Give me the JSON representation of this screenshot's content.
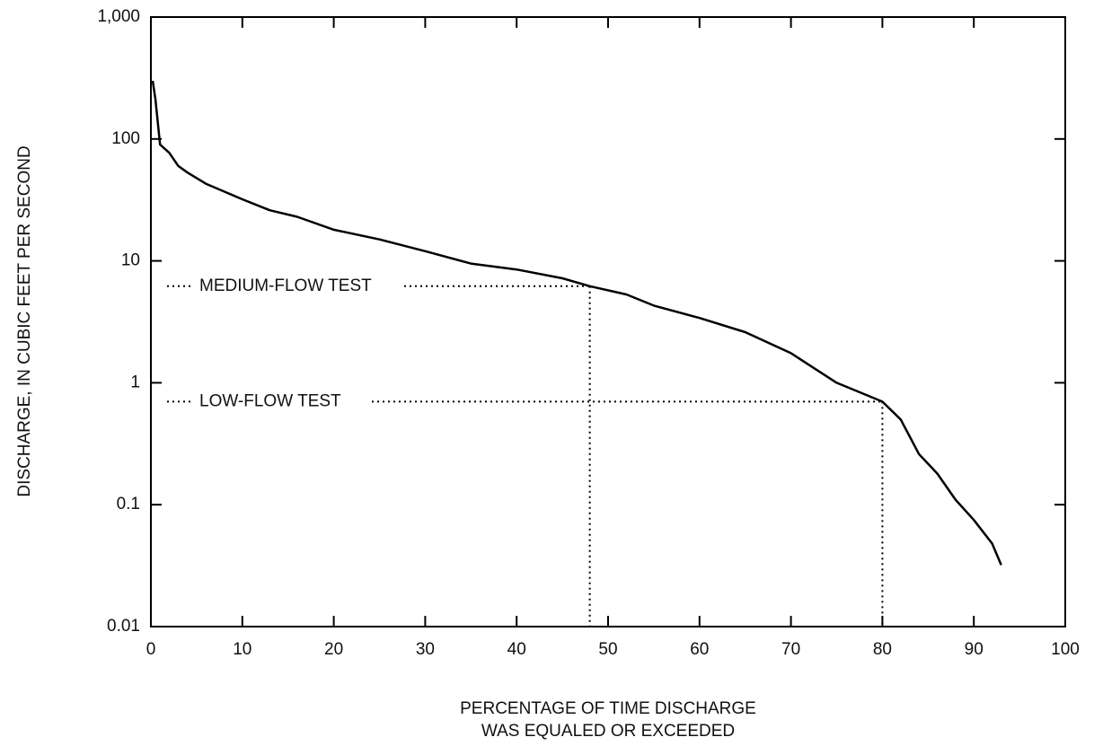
{
  "chart_data": {
    "type": "line",
    "ylabel": "DISCHARGE, IN CUBIC FEET PER SECOND",
    "xlabel": [
      "PERCENTAGE OF TIME DISCHARGE",
      "WAS EQUALED OR EXCEEDED"
    ],
    "x": [
      0.2,
      0.5,
      1,
      2,
      3,
      4,
      6,
      10,
      13,
      16,
      20,
      25,
      30,
      35,
      40,
      45,
      48,
      52,
      55,
      60,
      65,
      70,
      75,
      80,
      82,
      84,
      86,
      88,
      90,
      92,
      93
    ],
    "values": [
      300,
      210,
      90,
      77,
      60,
      53,
      43,
      32,
      26,
      23,
      18,
      15,
      12,
      9.5,
      8.5,
      7.2,
      6.2,
      5.3,
      4.3,
      3.4,
      2.6,
      1.75,
      1.0,
      0.7,
      0.5,
      0.26,
      0.18,
      0.11,
      0.075,
      0.048,
      0.032
    ],
    "color": "#000000",
    "log_y": true,
    "xlim": [
      0,
      100
    ],
    "xticks": [
      0,
      10,
      20,
      30,
      40,
      50,
      60,
      70,
      80,
      90,
      100
    ],
    "ylim": [
      0.01,
      1000
    ],
    "yticks": [
      0.01,
      0.1,
      1,
      10,
      100,
      {
        "value": 1000,
        "label": "1,000"
      }
    ],
    "annotations": [
      {
        "text": "MEDIUM-FLOW TEST",
        "x": 48,
        "y": 6.2
      },
      {
        "text": "LOW-FLOW TEST",
        "x": 80,
        "y": 0.7
      }
    ]
  }
}
